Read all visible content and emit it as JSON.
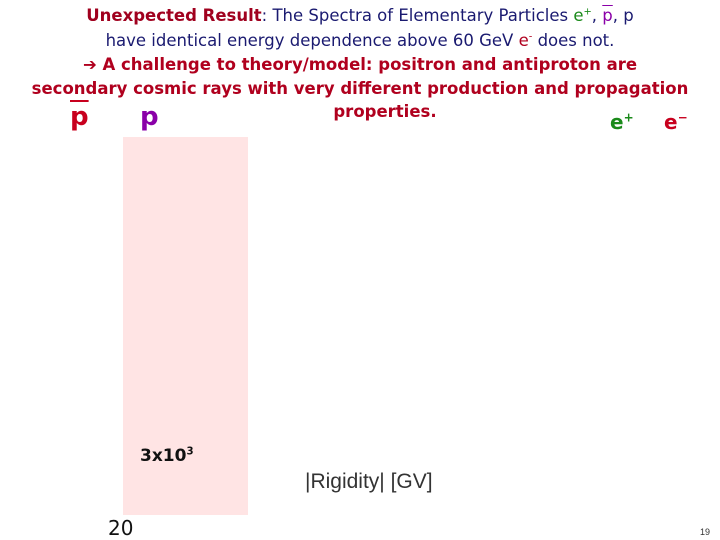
{
  "header": {
    "line1": [
      "Unexpected Result",
      ": The Spectra of Elementary Particles ",
      "e",
      "+",
      ", ",
      "p",
      ", p"
    ],
    "line2": [
      "have identical energy dependence above 60 GeV ",
      "e",
      "-",
      " does not."
    ],
    "line3": "➔ A challenge to theory/model: positron and antiproton are",
    "line4": "secondary cosmic rays with very different production and propagation",
    "line5": "properties."
  },
  "labels": {
    "antiproton": "p",
    "proton": "p",
    "positron": [
      "e",
      "+"
    ],
    "electron": [
      "e",
      "−"
    ]
  },
  "figure": {
    "energy_label": [
      "3x10",
      "3"
    ],
    "x_axis_label": "|Rigidity| [GV]",
    "x_start": "20"
  },
  "footer": {
    "page_number": "19"
  }
}
